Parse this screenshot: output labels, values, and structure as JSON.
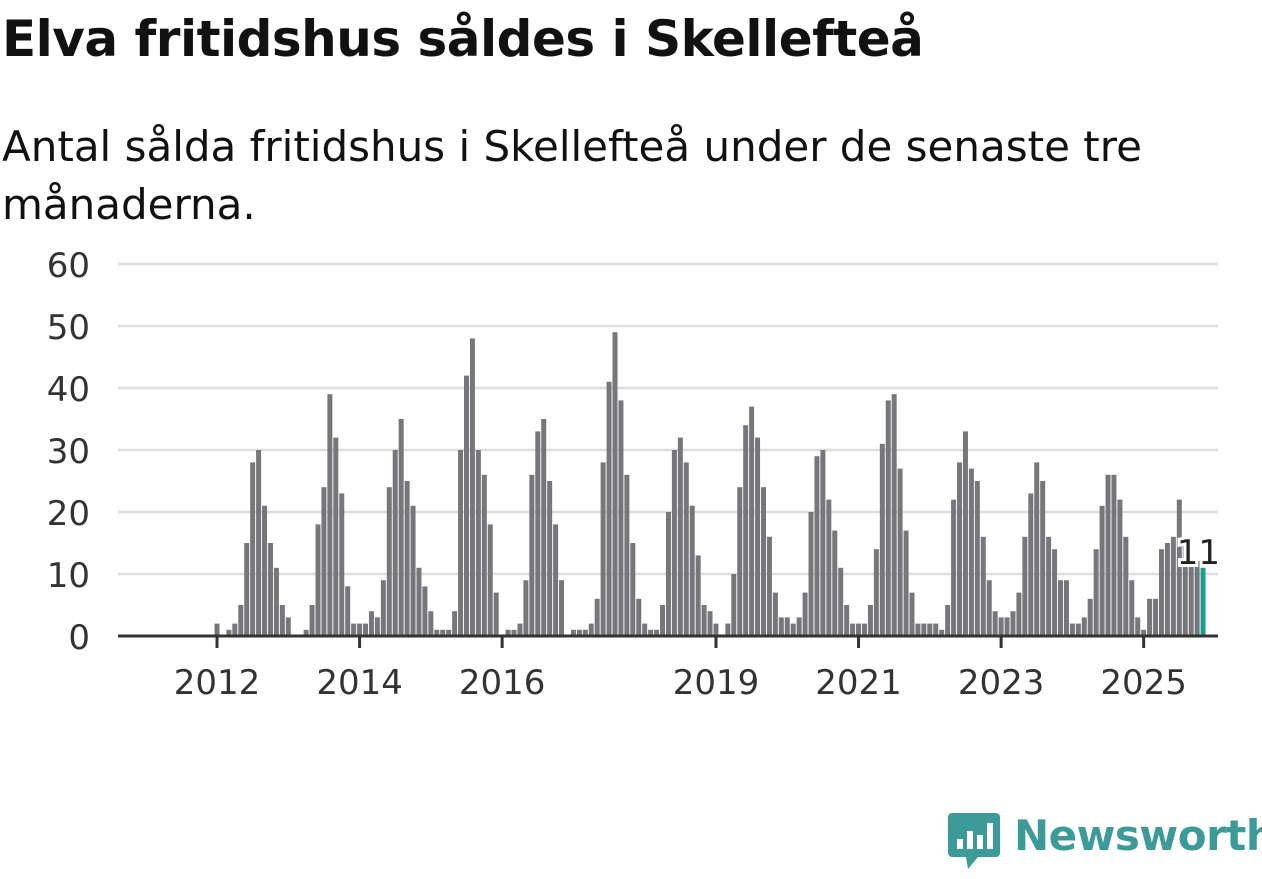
{
  "title": "Elva fritidshus såldes i Skellefteå",
  "subtitle": "Antal sålda fritidshus i Skellefteå under de senaste tre månaderna.",
  "brand": {
    "name": "Newsworthy",
    "logo_icon": "bar-chart-speech-bubble-icon"
  },
  "colors": {
    "bars": "#77767b",
    "highlight": "#1b9c96",
    "grid": "#dddddd",
    "axis": "#333333",
    "brand": "#3c9b98"
  },
  "chart_data": {
    "type": "bar",
    "y_ticks": [
      0,
      10,
      20,
      30,
      40,
      50,
      60
    ],
    "ylim": [
      0,
      60
    ],
    "x_ticks": [
      {
        "label": "2012",
        "index": 8
      },
      {
        "label": "2014",
        "index": 32
      },
      {
        "label": "2016",
        "index": 56
      },
      {
        "label": "2019",
        "index": 92
      },
      {
        "label": "2021",
        "index": 116
      },
      {
        "label": "2023",
        "index": 140
      },
      {
        "label": "2025",
        "index": 164
      }
    ],
    "grid": true,
    "legend": "none",
    "highlight": {
      "index": 174,
      "label": "11"
    },
    "values": [
      0,
      0,
      0,
      0,
      0,
      0,
      0,
      0,
      2,
      0,
      1,
      2,
      5,
      15,
      28,
      30,
      21,
      15,
      11,
      5,
      3,
      0,
      0,
      1,
      5,
      18,
      24,
      39,
      32,
      23,
      8,
      2,
      2,
      2,
      4,
      3,
      9,
      24,
      30,
      35,
      25,
      21,
      11,
      8,
      4,
      1,
      1,
      1,
      4,
      30,
      42,
      48,
      30,
      26,
      18,
      7,
      0,
      1,
      1,
      2,
      9,
      26,
      33,
      35,
      25,
      18,
      9,
      0,
      1,
      1,
      1,
      2,
      6,
      28,
      41,
      49,
      38,
      26,
      15,
      6,
      2,
      1,
      1,
      5,
      20,
      30,
      32,
      28,
      21,
      13,
      5,
      4,
      2,
      0,
      2,
      10,
      24,
      34,
      37,
      32,
      24,
      16,
      7,
      3,
      3,
      2,
      3,
      7,
      20,
      29,
      30,
      22,
      17,
      11,
      5,
      2,
      2,
      2,
      5,
      14,
      31,
      38,
      39,
      27,
      17,
      7,
      2,
      2,
      2,
      2,
      1,
      5,
      22,
      28,
      33,
      27,
      25,
      16,
      9,
      4,
      3,
      3,
      4,
      7,
      16,
      23,
      28,
      25,
      16,
      14,
      9,
      9,
      2,
      2,
      3,
      6,
      14,
      21,
      26,
      26,
      22,
      16,
      9,
      3,
      1,
      6,
      6,
      14,
      15,
      16,
      22,
      15,
      13,
      13,
      11
    ]
  }
}
